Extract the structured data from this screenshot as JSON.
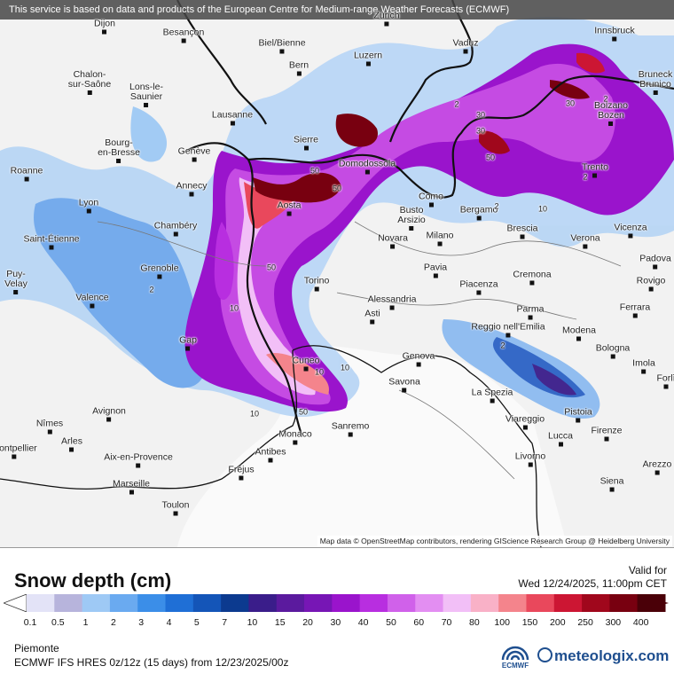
{
  "banner": "This service is based on data and products of the European Centre for Medium-range Weather Forecasts (ECMWF)",
  "attribution": "Map data © OpenStreetMap contributors, rendering GIScience Research Group @ Heidelberg University",
  "cities": [
    {
      "name": "Dijon"
    },
    {
      "name": "Besançon"
    },
    {
      "name": "Biel/Bienne"
    },
    {
      "name": "Zürich"
    },
    {
      "name": "Vaduz"
    },
    {
      "name": "Innsbruck"
    },
    {
      "name": "Bern"
    },
    {
      "name": "Luzern"
    },
    {
      "name": "Chalon-\nsur-Saône"
    },
    {
      "name": "Lons-le-\nSaunier"
    },
    {
      "name": "Bruneck\nBrunico"
    },
    {
      "name": "Lausanne"
    },
    {
      "name": "Bolzano\nBozen"
    },
    {
      "name": "Sierre"
    },
    {
      "name": "Bourg-\nen-Bresse"
    },
    {
      "name": "Genève"
    },
    {
      "name": "Domodossola"
    },
    {
      "name": "Roanne"
    },
    {
      "name": "Trento"
    },
    {
      "name": "Annecy"
    },
    {
      "name": "Como"
    },
    {
      "name": "Lyon"
    },
    {
      "name": "Aosta"
    },
    {
      "name": "Busto\nArsizio"
    },
    {
      "name": "Bergamo"
    },
    {
      "name": "Chambéry"
    },
    {
      "name": "Brescia"
    },
    {
      "name": "Saint-Étienne"
    },
    {
      "name": "Novara"
    },
    {
      "name": "Milano"
    },
    {
      "name": "Verona"
    },
    {
      "name": "Vicenza"
    },
    {
      "name": "Padova"
    },
    {
      "name": "Grenoble"
    },
    {
      "name": "Pavia"
    },
    {
      "name": "Puy-\nVelay"
    },
    {
      "name": "Torino"
    },
    {
      "name": "Piacenza"
    },
    {
      "name": "Cremona"
    },
    {
      "name": "Rovigo"
    },
    {
      "name": "Valence"
    },
    {
      "name": "Alessandria"
    },
    {
      "name": "Parma"
    },
    {
      "name": "Ferrara"
    },
    {
      "name": "Asti"
    },
    {
      "name": "Reggio nell'Emilia"
    },
    {
      "name": "Modena"
    },
    {
      "name": "Gap"
    },
    {
      "name": "Bologna"
    },
    {
      "name": "Cuneo"
    },
    {
      "name": "Genova"
    },
    {
      "name": "Imola"
    },
    {
      "name": "Savona"
    },
    {
      "name": "La Spezia"
    },
    {
      "name": "Avignon"
    },
    {
      "name": "Pistoia"
    },
    {
      "name": "Nîmes"
    },
    {
      "name": "Sanremo"
    },
    {
      "name": "Viareggio"
    },
    {
      "name": "Monaco"
    },
    {
      "name": "Lucca"
    },
    {
      "name": "Firenze"
    },
    {
      "name": "Arles"
    },
    {
      "name": "Antibes"
    },
    {
      "name": "Montpellier"
    },
    {
      "name": "Aix-en-Provence"
    },
    {
      "name": "Livorno"
    },
    {
      "name": "Arezzo"
    },
    {
      "name": "Fréjus"
    },
    {
      "name": "Marseille"
    },
    {
      "name": "Siena"
    },
    {
      "name": "Toulon"
    },
    {
      "name": "Forlì"
    }
  ],
  "contour_labels": [
    "2",
    "10",
    "50",
    "30",
    "50",
    "10",
    "30",
    "50",
    "2",
    "2",
    "2",
    "10",
    "50",
    "2",
    "30",
    "50",
    "10",
    "10",
    "2"
  ],
  "legend": {
    "title": "Snow depth (cm)",
    "valid_label": "Valid for",
    "valid_time": "Wed 12/24/2025, 11:00pm CET",
    "ticks": [
      "0.1",
      "0.5",
      "1",
      "2",
      "3",
      "4",
      "5",
      "7",
      "10",
      "15",
      "20",
      "30",
      "40",
      "50",
      "60",
      "70",
      "80",
      "100",
      "150",
      "200",
      "250",
      "300",
      "400"
    ],
    "colors": [
      "#e3e3f7",
      "#b7b4dc",
      "#9ec9f5",
      "#6aaaf0",
      "#3b8ee8",
      "#1f6fd6",
      "#1455b8",
      "#0c3a8f",
      "#3a1d8a",
      "#5b1a9e",
      "#7716b5",
      "#9a14cc",
      "#b82ee0",
      "#d061ea",
      "#e38ef2",
      "#f2bff7",
      "#f9b1c7",
      "#f4848c",
      "#e9485c",
      "#cc1633",
      "#a0071c",
      "#780010",
      "#4a0008"
    ]
  },
  "footer": {
    "region": "Piemonte",
    "model": "ECMWF IFS HRES 0z/12z (15 days) from 12/23/2025/00z",
    "ecmwf_label": "ECMWF",
    "brand": "meteologix.com"
  }
}
